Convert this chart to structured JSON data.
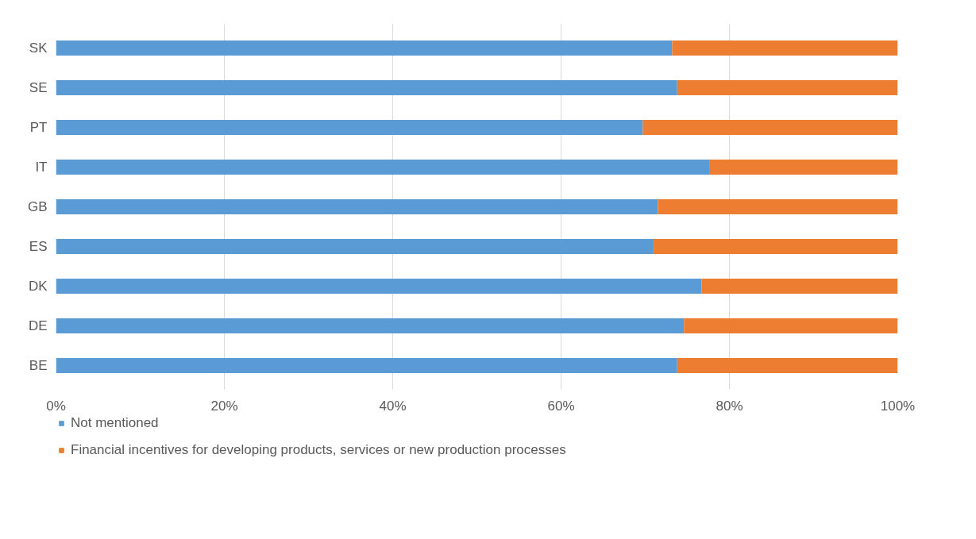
{
  "chart_data": {
    "type": "bar",
    "orientation": "horizontal",
    "stacked": true,
    "categories": [
      "SK",
      "SE",
      "PT",
      "IT",
      "GB",
      "ES",
      "DK",
      "DE",
      "BE"
    ],
    "series": [
      {
        "name": "Not mentioned",
        "color": "#5b9bd5",
        "values": [
          73.2,
          73.8,
          69.7,
          77.6,
          71.5,
          71.0,
          76.7,
          74.6,
          73.8
        ]
      },
      {
        "name": "Financial incentives for developing products, services or new production processes",
        "color": "#ed7d31",
        "values": [
          26.8,
          26.2,
          30.3,
          22.4,
          28.5,
          29.0,
          23.3,
          25.4,
          26.2
        ]
      }
    ],
    "xlim": [
      0,
      100
    ],
    "xticks": [
      {
        "value": 0,
        "label": "0%"
      },
      {
        "value": 20,
        "label": "20%"
      },
      {
        "value": 40,
        "label": "40%"
      },
      {
        "value": 60,
        "label": "60%"
      },
      {
        "value": 80,
        "label": "80%"
      },
      {
        "value": 100,
        "label": "100%"
      }
    ],
    "grid": "x",
    "legend": "bottom"
  }
}
